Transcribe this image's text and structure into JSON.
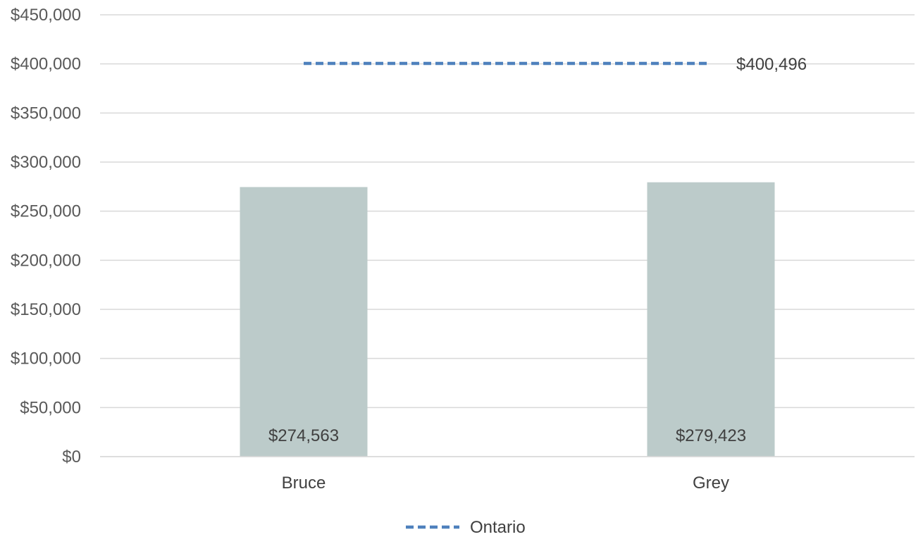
{
  "chart_data": {
    "type": "bar",
    "title": "",
    "xlabel": "",
    "ylabel": "",
    "categories": [
      "Bruce",
      "Grey"
    ],
    "series": [
      {
        "values": [
          274563,
          279423
        ],
        "value_labels": [
          "$274,563",
          "$279,423"
        ],
        "color": "#bccbca"
      }
    ],
    "reference_line": {
      "name": "Ontario",
      "value": 400496,
      "value_label": "$400,496",
      "style": "dashed",
      "color": "#4f81bd"
    },
    "ylim": [
      0,
      450000
    ],
    "y_ticks": [
      0,
      50000,
      100000,
      150000,
      200000,
      250000,
      300000,
      350000,
      400000,
      450000
    ],
    "y_tick_labels": [
      "$0",
      "$50,000",
      "$100,000",
      "$150,000",
      "$200,000",
      "$250,000",
      "$300,000",
      "$350,000",
      "$400,000",
      "$450,000"
    ],
    "grid": true,
    "gridline_color": "#d9d9d9",
    "legend": {
      "placement": "bottom-center",
      "entries": [
        "Ontario"
      ]
    }
  }
}
